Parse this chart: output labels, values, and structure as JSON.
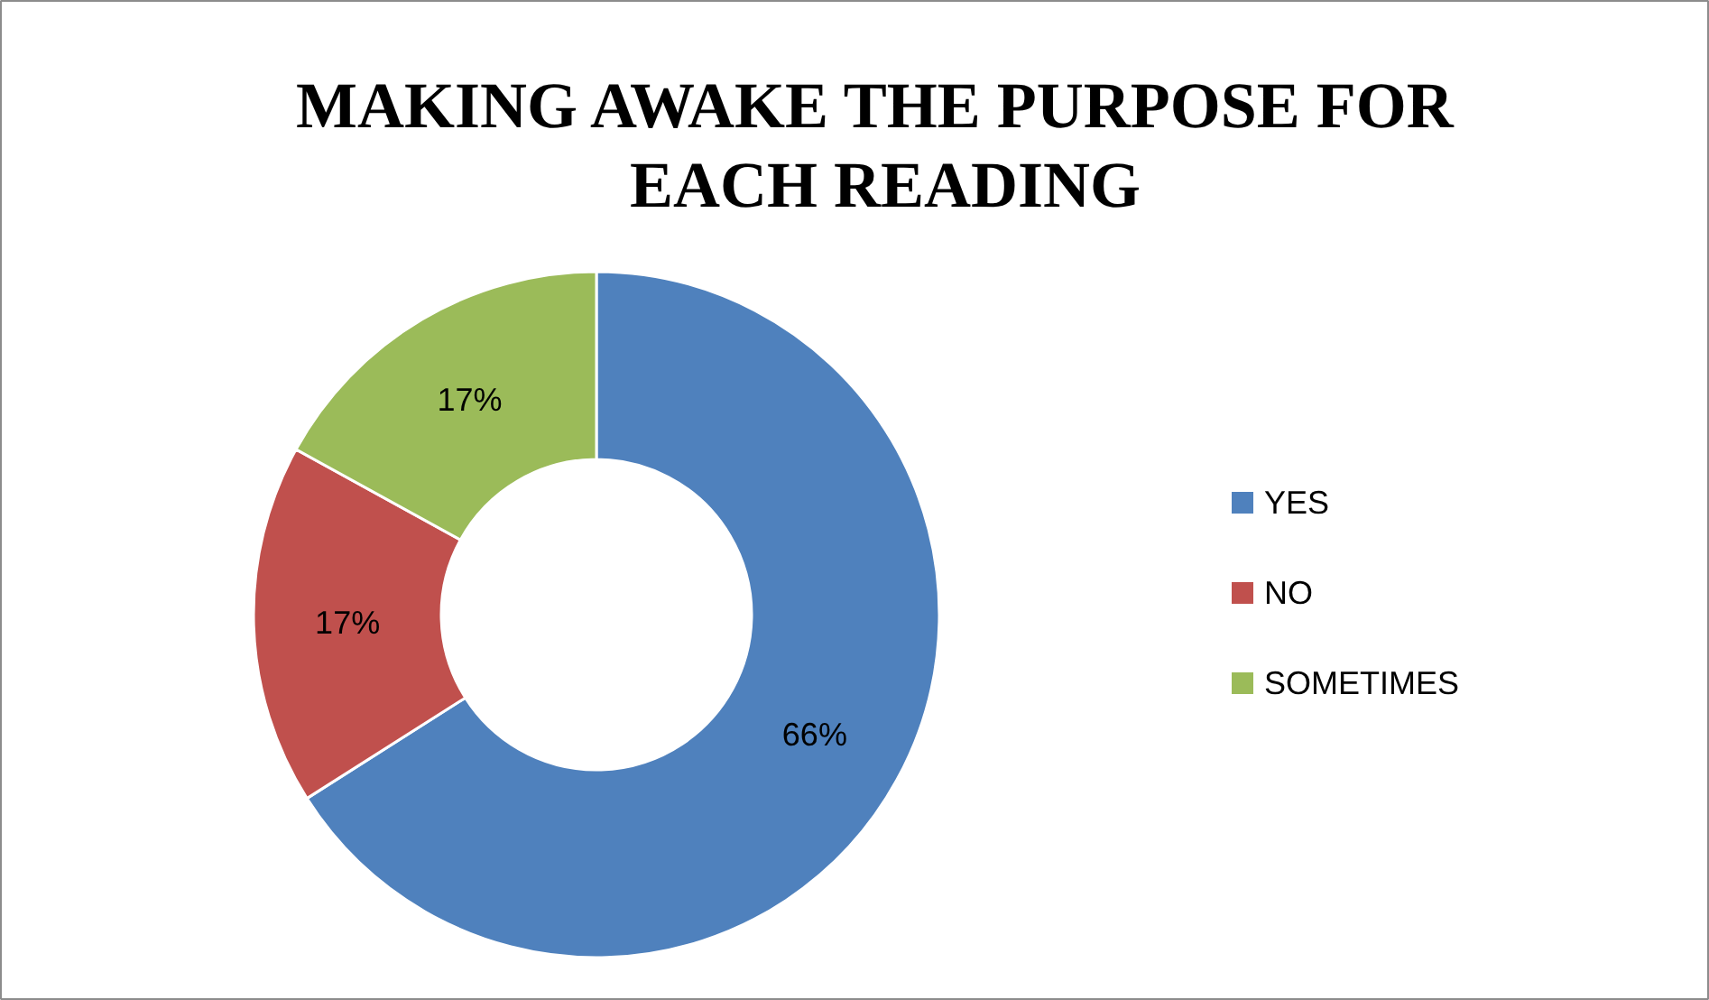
{
  "chart_data": {
    "type": "donut",
    "title": "MAKING AWAKE  THE PURPOSE FOR EACH READING",
    "categories": [
      "YES",
      "NO",
      "SOMETIMES"
    ],
    "values": [
      66,
      17,
      17
    ],
    "colors": [
      "#4f81bd",
      "#c0504d",
      "#9bbb59"
    ],
    "value_labels": [
      "66%",
      "17%",
      "17%"
    ],
    "legend": "right"
  }
}
